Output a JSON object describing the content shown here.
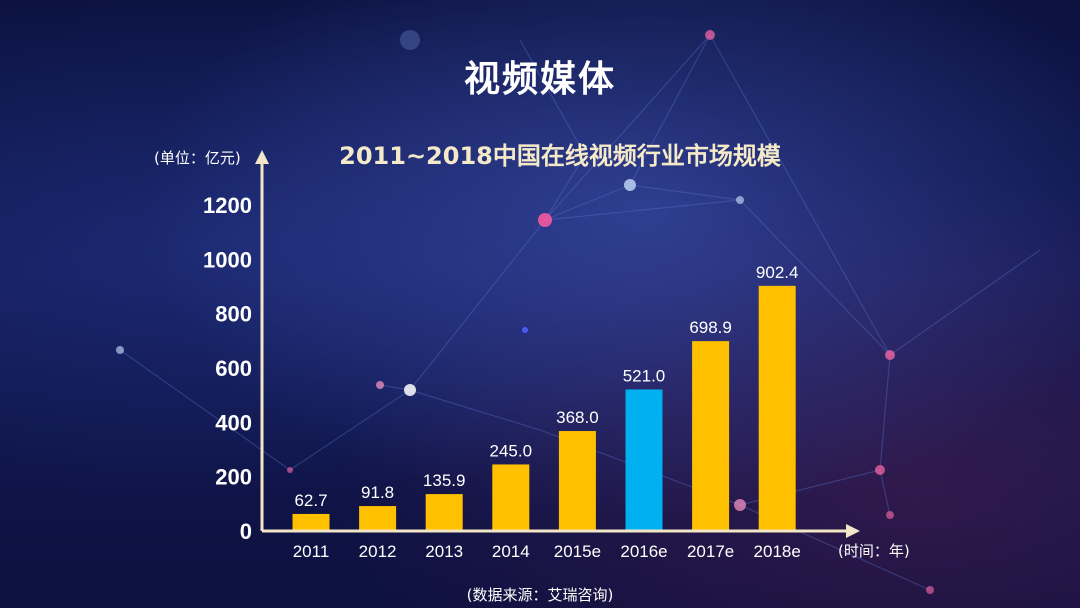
{
  "slide": {
    "title": "视频媒体",
    "source": "(数据来源：艾瑞咨询)"
  },
  "chart_data": {
    "type": "bar",
    "title": "2011~2018中国在线视频行业市场规模",
    "ylabel": "(单位：亿元)",
    "xlabel": "(时间：年)",
    "categories": [
      "2011",
      "2012",
      "2013",
      "2014",
      "2015e",
      "2016e",
      "2017e",
      "2018e"
    ],
    "values": [
      62.7,
      91.8,
      135.9,
      245.0,
      368.0,
      521.0,
      698.9,
      902.4
    ],
    "data_labels": [
      "62.7",
      "91.8",
      "135.9",
      "245.0",
      "368.0",
      "521.0",
      "698.9",
      "902.4"
    ],
    "ylim": [
      0,
      1200
    ],
    "yticks": [
      0,
      200,
      400,
      600,
      800,
      1000,
      1200
    ],
    "colors": [
      "#ffc000",
      "#ffc000",
      "#ffc000",
      "#ffc000",
      "#ffc000",
      "#00b0f0",
      "#ffc000",
      "#ffc000"
    ],
    "highlight_color": "#00b0f0",
    "bar_color": "#ffc000",
    "axis_color": "#f3e6c6",
    "grid": false,
    "legend": "none"
  }
}
